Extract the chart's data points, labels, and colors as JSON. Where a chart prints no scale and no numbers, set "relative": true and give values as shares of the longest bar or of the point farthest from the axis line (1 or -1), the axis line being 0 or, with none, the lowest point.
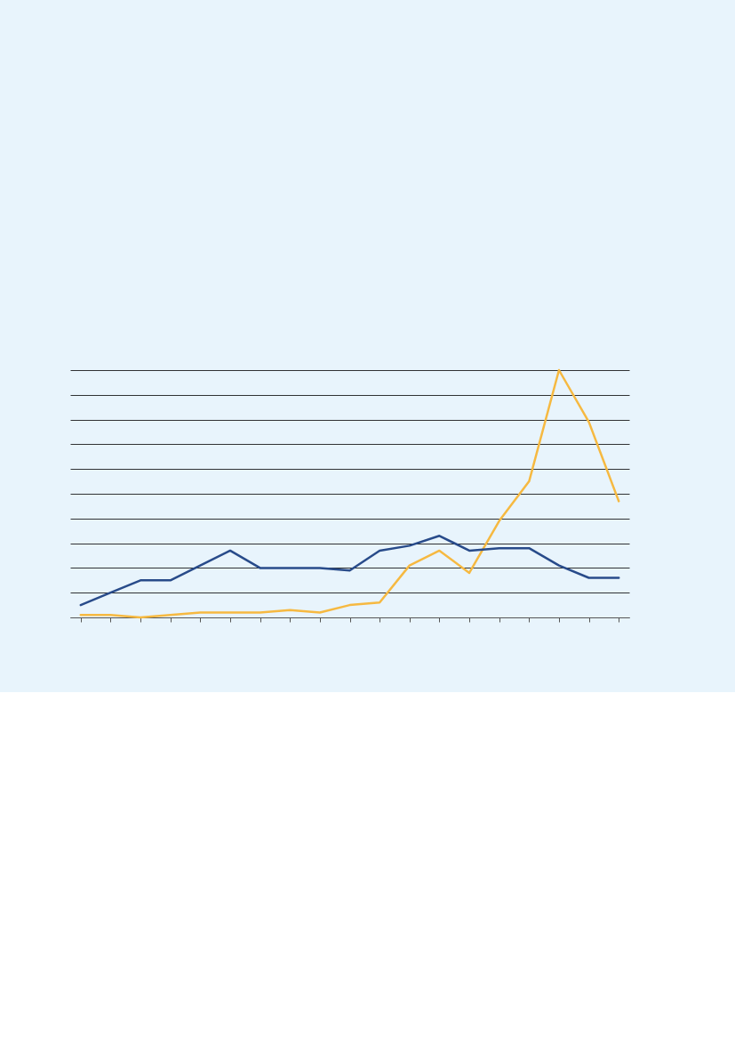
{
  "chart_data": {
    "type": "line",
    "relative": true,
    "grid": "y",
    "tick_labels": false,
    "line_style": "solid",
    "marker": "none",
    "categories": [
      null,
      null,
      null,
      null,
      null,
      null,
      null,
      null,
      null,
      null,
      null,
      null,
      null,
      null,
      null,
      null,
      null,
      null,
      null
    ],
    "series": [
      {
        "color": "#f6b941",
        "values": [
          0.01,
          0.01,
          0.0,
          0.01,
          0.02,
          0.02,
          0.02,
          0.03,
          0.02,
          0.05,
          0.06,
          0.21,
          0.27,
          0.18,
          0.39,
          0.55,
          1,
          0.79,
          0.47
        ]
      },
      {
        "color": "#284b8a",
        "values": [
          0.05,
          0.1,
          0.15,
          0.15,
          0.21,
          0.27,
          0.2,
          0.2,
          0.2,
          0.19,
          0.27,
          0.29,
          0.33,
          0.27,
          0.28,
          0.28,
          0.21,
          0.16,
          0.16
        ]
      }
    ]
  }
}
